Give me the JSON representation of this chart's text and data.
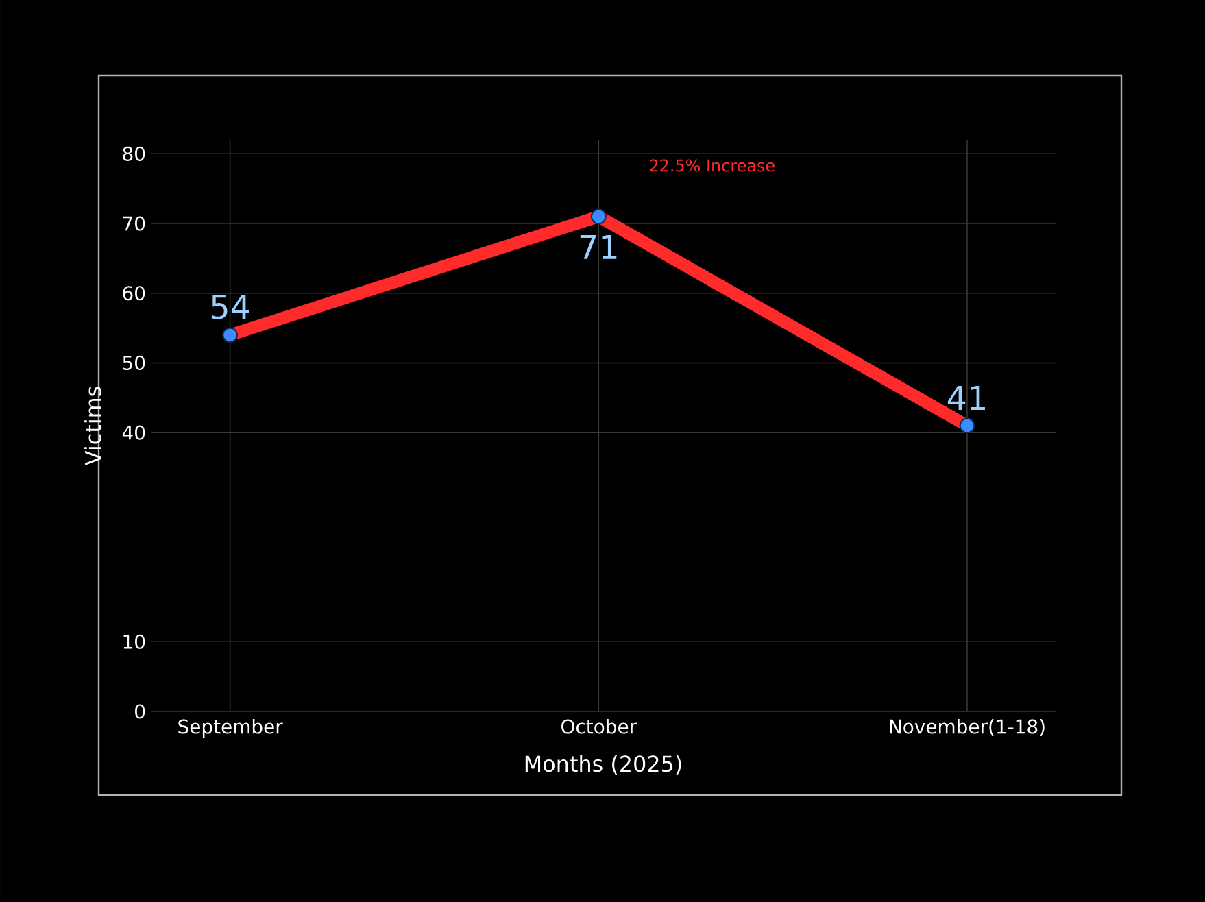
{
  "chart_data": {
    "type": "line",
    "xlabel": "Months (2025)",
    "ylabel": "Victims",
    "categories": [
      "September",
      "October",
      "November(1-18)"
    ],
    "values": [
      54,
      71,
      41
    ],
    "color": "#ff2b2b",
    "marker": "circle",
    "line_style": "solid",
    "data_labels": true,
    "grid": true,
    "ylim": [
      0,
      82
    ],
    "yticks": [
      0,
      10,
      40,
      50,
      60,
      70,
      80
    ],
    "annotations": [
      "22.5% Increase"
    ]
  }
}
